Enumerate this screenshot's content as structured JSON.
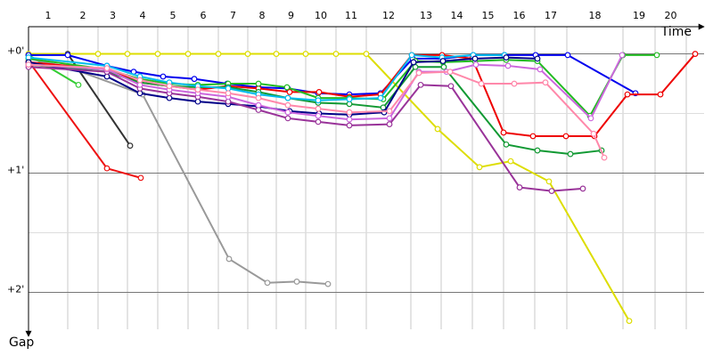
{
  "chart_data": {
    "type": "line",
    "x_label": "Time",
    "y_label": "Gap",
    "xlim": [
      0,
      37.9
    ],
    "ylim": [
      -0.34,
      2.31
    ],
    "y_inverted": true,
    "xticks": [
      {
        "value": 2.2,
        "label": "1"
      },
      {
        "value": 3.9,
        "label": "2"
      },
      {
        "value": 5.55,
        "label": "3"
      },
      {
        "value": 7.25,
        "label": "4"
      },
      {
        "value": 8.95,
        "label": "5"
      },
      {
        "value": 10.65,
        "label": "6"
      },
      {
        "value": 12.3,
        "label": "7"
      },
      {
        "value": 13.9,
        "label": "8"
      },
      {
        "value": 15.55,
        "label": "9"
      },
      {
        "value": 17.25,
        "label": "10"
      },
      {
        "value": 18.95,
        "label": "11"
      },
      {
        "value": 21.45,
        "label": "12"
      },
      {
        "value": 23.15,
        "label": "13"
      },
      {
        "value": 24.9,
        "label": "14"
      },
      {
        "value": 26.65,
        "label": "15"
      },
      {
        "value": 28.4,
        "label": "16"
      },
      {
        "value": 30.2,
        "label": "17"
      },
      {
        "value": 33.35,
        "label": "18"
      },
      {
        "value": 35.15,
        "label": "19"
      },
      {
        "value": 36.9,
        "label": "20"
      }
    ],
    "yticks": [
      {
        "value": 0,
        "label": "+0'"
      },
      {
        "value": 1,
        "label": "+1'"
      },
      {
        "value": 2,
        "label": "+2'"
      }
    ],
    "minor_yticks": [
      0.5,
      1.5
    ],
    "grid": true,
    "series": [
      {
        "color": "#ee1111",
        "x": [
          0,
          4.4,
          6.3
        ],
        "values": [
          0.06,
          0.96,
          1.04
        ]
      },
      {
        "color": "#333333",
        "x": [
          0,
          2.2,
          5.7
        ],
        "values": [
          0.01,
          0,
          0.77
        ]
      },
      {
        "color": "#33cc33",
        "x": [
          0,
          2.8
        ],
        "values": [
          0.01,
          0.26
        ]
      },
      {
        "color": "#999999",
        "x": [
          0,
          2.2,
          6.4,
          11.25,
          13.4,
          15.05,
          16.8
        ],
        "values": [
          0.04,
          0.11,
          0.34,
          1.72,
          1.92,
          1.91,
          1.93
        ]
      },
      {
        "color": "#dddd00",
        "x": [
          0,
          3.9,
          5.55,
          7.25,
          8.95,
          10.65,
          12.3,
          13.9,
          15.55,
          17.25,
          18.95,
          22.95,
          25.3,
          27.05,
          29.2,
          33.7
        ],
        "values": [
          0,
          0,
          0,
          0,
          0,
          0,
          0,
          0,
          0,
          0,
          0,
          0.63,
          0.95,
          0.9,
          1.07,
          2.24
        ]
      },
      {
        "color": "#0000ee",
        "x": [
          0,
          2.2,
          4.4,
          5.9,
          7.55,
          9.3,
          11.15,
          12.9,
          14.55,
          16.25,
          18,
          19.75,
          21.55,
          23.25,
          24.95,
          26.7,
          28.45,
          30.25,
          34.05
        ],
        "values": [
          0.01,
          0.01,
          0.1,
          0.15,
          0.19,
          0.21,
          0.25,
          0.28,
          0.29,
          0.33,
          0.34,
          0.33,
          0.04,
          0.04,
          0.01,
          0.01,
          0.01,
          0.01,
          0.33
        ]
      },
      {
        "color": "#ee0000",
        "x": [
          0,
          4.4,
          6.25,
          7.9,
          9.5,
          11.2,
          12.9,
          14.65,
          16.3,
          18,
          19.75,
          21.5,
          23.2,
          24.9,
          26.65,
          28.3,
          30.15,
          31.75,
          33.6,
          35.45,
          37.4
        ],
        "values": [
          0.07,
          0.13,
          0.24,
          0.27,
          0.3,
          0.27,
          0.29,
          0.32,
          0.32,
          0.36,
          0.34,
          0.01,
          0.01,
          0.04,
          0.66,
          0.69,
          0.69,
          0.69,
          0.34,
          0.34,
          0
        ]
      },
      {
        "color": "#22bb22",
        "x": [
          0,
          4.4,
          6.25,
          7.9,
          9.5,
          11.2,
          12.9,
          14.5,
          16.25,
          18,
          19.9,
          21.7,
          23.25,
          25.05,
          26.8,
          28.55,
          31.5,
          33.35,
          35.25
        ],
        "values": [
          0.04,
          0.13,
          0.21,
          0.25,
          0.26,
          0.25,
          0.25,
          0.28,
          0.37,
          0.37,
          0.38,
          0.06,
          0.07,
          0.06,
          0.05,
          0.06,
          0.52,
          0.01,
          0.01
        ]
      },
      {
        "color": "#119933",
        "x": [
          0,
          4.4,
          6.25,
          7.9,
          9.5,
          11.2,
          12.9,
          14.55,
          16.25,
          18,
          19.9,
          21.7,
          23.3,
          26.8,
          28.55,
          30.4,
          32.15
        ],
        "values": [
          0.09,
          0.15,
          0.24,
          0.27,
          0.28,
          0.28,
          0.32,
          0.37,
          0.41,
          0.42,
          0.45,
          0.11,
          0.11,
          0.76,
          0.81,
          0.84,
          0.81
        ]
      },
      {
        "color": "#00bbee",
        "x": [
          0,
          4.4,
          6.25,
          7.9,
          9.5,
          11.2,
          12.9,
          14.55,
          16.25,
          18,
          19.75,
          21.5,
          23.2,
          24.95,
          26.7
        ],
        "values": [
          0.03,
          0.1,
          0.19,
          0.24,
          0.27,
          0.29,
          0.34,
          0.37,
          0.39,
          0.38,
          0.37,
          0.01,
          0.03,
          0.01,
          0.01
        ]
      },
      {
        "color": "#000088",
        "x": [
          0,
          4.4,
          6.25,
          7.9,
          9.5,
          11.2,
          12.9,
          14.65,
          16.3,
          18,
          19.95,
          21.6,
          23.25,
          25.05,
          26.8,
          28.55
        ],
        "values": [
          0.07,
          0.19,
          0.33,
          0.37,
          0.4,
          0.42,
          0.44,
          0.48,
          0.5,
          0.51,
          0.49,
          0.07,
          0.06,
          0.04,
          0.03,
          0.04
        ]
      },
      {
        "color": "#993399",
        "x": [
          0,
          4.4,
          6.25,
          7.9,
          9.5,
          11.2,
          12.9,
          14.55,
          16.25,
          18,
          20.25,
          22,
          23.7,
          27.55,
          29.35,
          31.1
        ],
        "values": [
          0.11,
          0.15,
          0.29,
          0.33,
          0.36,
          0.4,
          0.47,
          0.54,
          0.57,
          0.6,
          0.59,
          0.26,
          0.27,
          1.12,
          1.15,
          1.13
        ]
      },
      {
        "color": "#cc66dd",
        "x": [
          0,
          4.4,
          6.25,
          7.9,
          9.5,
          11.2,
          12.9,
          14.55,
          16.25,
          18,
          20.25,
          21.9,
          23.45,
          25.1,
          26.9,
          28.7,
          31.55,
          33.3
        ],
        "values": [
          0.09,
          0.13,
          0.26,
          0.3,
          0.33,
          0.36,
          0.43,
          0.49,
          0.52,
          0.55,
          0.54,
          0.15,
          0.15,
          0.09,
          0.1,
          0.13,
          0.54,
          0.01
        ]
      },
      {
        "color": "#ff88aa",
        "x": [
          0,
          4.4,
          6.25,
          7.9,
          9.5,
          11.2,
          12.9,
          14.55,
          16.25,
          18,
          20.25,
          21.9,
          23.65,
          25.4,
          27.25,
          29,
          31.7,
          32.3
        ],
        "values": [
          0.09,
          0.12,
          0.22,
          0.27,
          0.3,
          0.33,
          0.37,
          0.43,
          0.46,
          0.49,
          0.48,
          0.16,
          0.15,
          0.25,
          0.25,
          0.24,
          0.67,
          0.87
        ]
      }
    ]
  }
}
